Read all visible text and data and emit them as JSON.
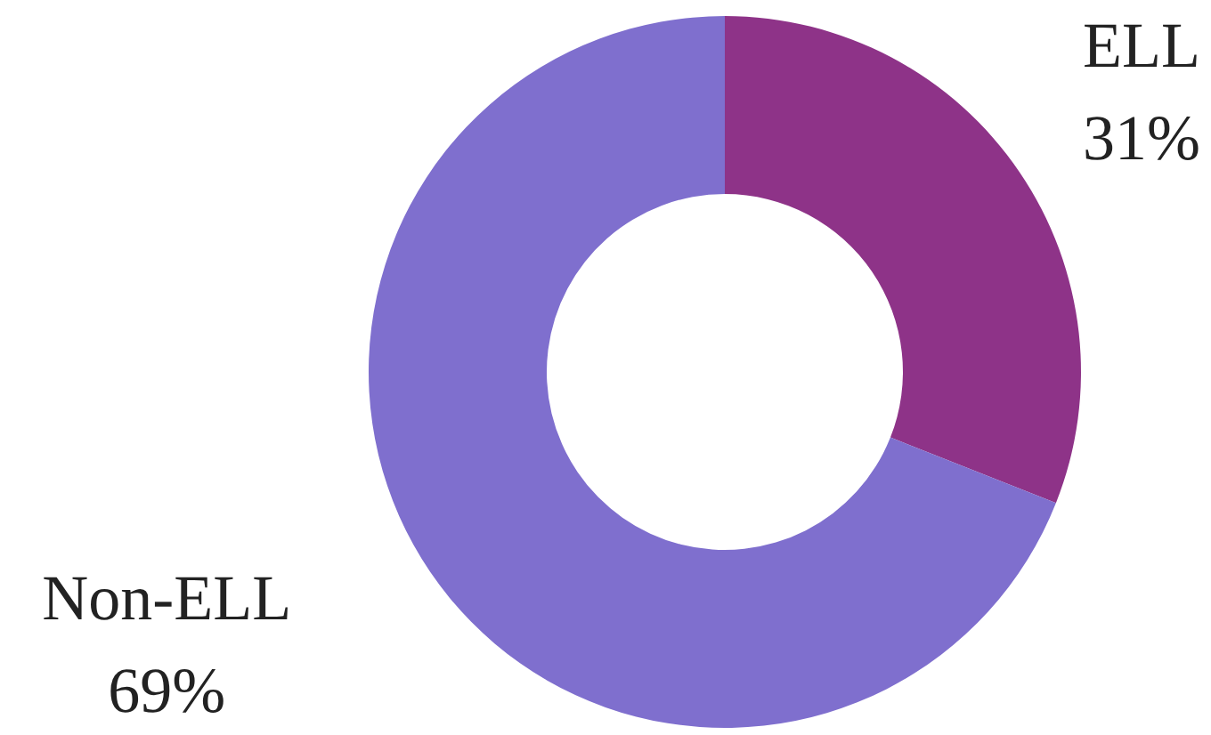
{
  "chart_data": {
    "type": "donut",
    "categories": [
      "ELL",
      "Non-ELL"
    ],
    "values": [
      31,
      69
    ],
    "value_labels": [
      "31%",
      "69%"
    ],
    "colors": [
      "#8e3388",
      "#7f6fce"
    ]
  }
}
